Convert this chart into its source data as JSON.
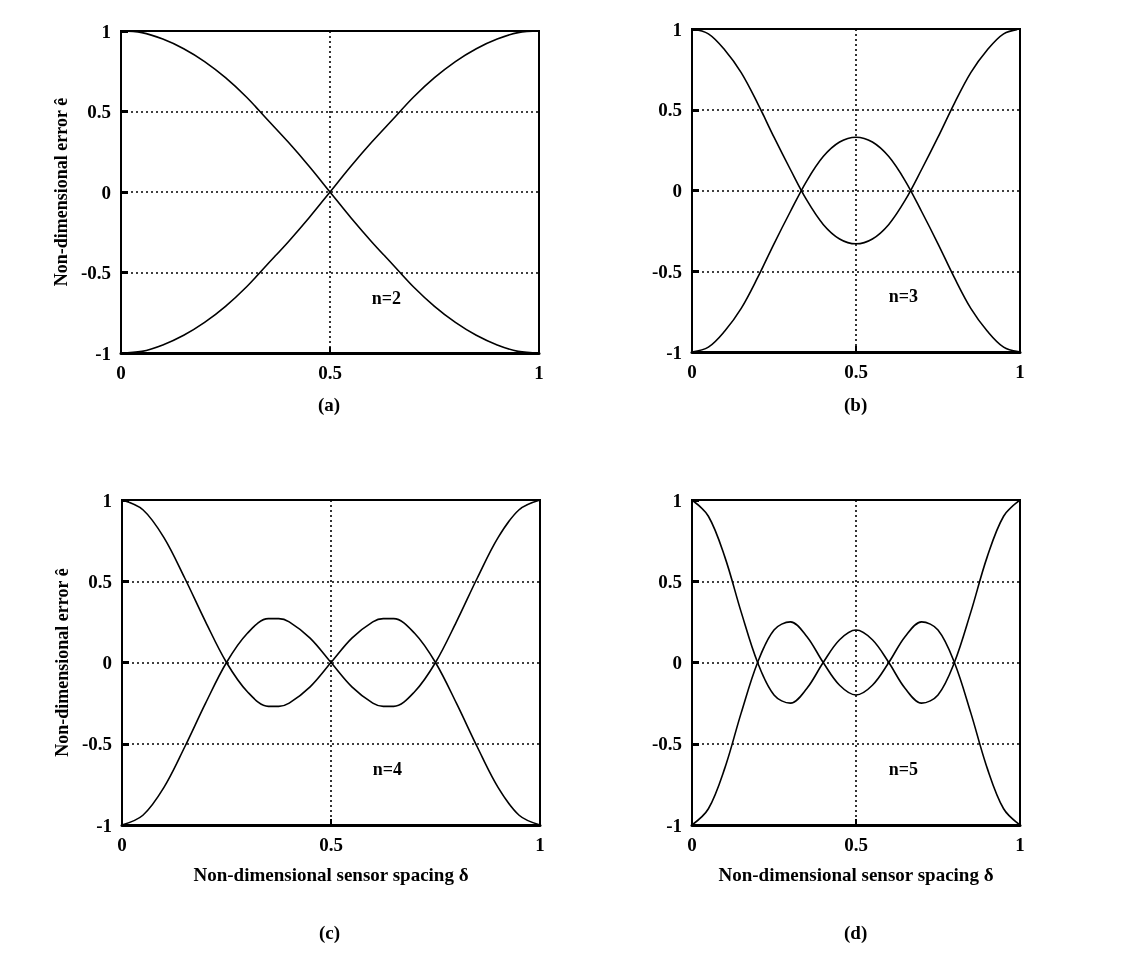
{
  "chart_data": [
    {
      "type": "line",
      "ylabel": "Non-dimensional error ê",
      "annotations": [
        "n=2",
        "(a)"
      ],
      "xlim": [
        0,
        1
      ],
      "xticks": [
        0,
        0.5,
        1
      ],
      "ylim": [
        -1,
        1
      ],
      "yticks": [
        -1,
        -0.5,
        0,
        0.5,
        1
      ],
      "grid": true,
      "marker": "none",
      "line_style": "solid",
      "x": [
        0,
        0.05,
        0.1,
        0.15,
        0.2,
        0.25,
        0.3,
        0.35,
        0.4,
        0.45,
        0.5,
        0.55,
        0.6,
        0.65,
        0.7,
        0.75,
        0.8,
        0.85,
        0.9,
        0.95,
        1
      ],
      "series": [
        {
          "color": "#000000",
          "values": [
            1,
            0.99,
            0.95,
            0.89,
            0.81,
            0.71,
            0.59,
            0.45,
            0.31,
            0.16,
            0,
            -0.16,
            -0.31,
            -0.45,
            -0.59,
            -0.71,
            -0.81,
            -0.89,
            -0.95,
            -0.99,
            -1
          ]
        },
        {
          "color": "#000000",
          "values": [
            -1,
            -0.99,
            -0.95,
            -0.89,
            -0.81,
            -0.71,
            -0.59,
            -0.45,
            -0.31,
            -0.16,
            0,
            0.16,
            0.31,
            0.45,
            0.59,
            0.71,
            0.81,
            0.89,
            0.95,
            0.99,
            1
          ]
        }
      ]
    },
    {
      "type": "line",
      "annotations": [
        "n=3",
        "(b)"
      ],
      "xlim": [
        0,
        1
      ],
      "xticks": [
        0,
        0.5,
        1
      ],
      "ylim": [
        -1,
        1
      ],
      "yticks": [
        -1,
        -0.5,
        0,
        0.5,
        1
      ],
      "grid": true,
      "marker": "none",
      "line_style": "solid",
      "x": [
        0,
        0.05,
        0.1,
        0.15,
        0.2,
        0.25,
        0.3,
        0.35,
        0.4,
        0.45,
        0.5,
        0.55,
        0.6,
        0.65,
        0.7,
        0.75,
        0.8,
        0.85,
        0.9,
        0.95,
        1
      ],
      "series": [
        {
          "color": "#000000",
          "values": [
            1,
            0.97,
            0.87,
            0.73,
            0.54,
            0.33,
            0.13,
            -0.06,
            -0.21,
            -0.3,
            -0.33,
            -0.3,
            -0.21,
            -0.06,
            0.13,
            0.33,
            0.54,
            0.73,
            0.87,
            0.97,
            1
          ]
        },
        {
          "color": "#000000",
          "values": [
            -1,
            -0.97,
            -0.87,
            -0.73,
            -0.54,
            -0.33,
            -0.13,
            0.06,
            0.21,
            0.3,
            0.33,
            0.3,
            0.21,
            0.06,
            -0.13,
            -0.33,
            -0.54,
            -0.73,
            -0.87,
            -0.97,
            -1
          ]
        }
      ]
    },
    {
      "type": "line",
      "ylabel": "Non-dimensional error ê",
      "xlabel": "Non-dimensional sensor spacing δ",
      "annotations": [
        "n=4",
        "(c)"
      ],
      "xlim": [
        0,
        1
      ],
      "xticks": [
        0,
        0.5,
        1
      ],
      "ylim": [
        -1,
        1
      ],
      "yticks": [
        -1,
        -0.5,
        0,
        0.5,
        1
      ],
      "grid": true,
      "marker": "none",
      "line_style": "solid",
      "x": [
        0,
        0.05,
        0.1,
        0.15,
        0.2,
        0.25,
        0.3,
        0.35,
        0.375,
        0.4,
        0.45,
        0.5,
        0.55,
        0.6,
        0.625,
        0.65,
        0.7,
        0.75,
        0.8,
        0.85,
        0.9,
        0.95,
        1
      ],
      "series": [
        {
          "color": "#000000",
          "values": [
            1,
            0.94,
            0.77,
            0.52,
            0.25,
            0,
            -0.18,
            -0.27,
            -0.27,
            -0.25,
            -0.15,
            0,
            0.15,
            0.25,
            0.27,
            0.27,
            0.18,
            0,
            -0.25,
            -0.52,
            -0.77,
            -0.94,
            -1
          ]
        },
        {
          "color": "#000000",
          "values": [
            -1,
            -0.94,
            -0.77,
            -0.52,
            -0.25,
            0,
            0.18,
            0.27,
            0.27,
            0.25,
            0.15,
            0,
            -0.15,
            -0.25,
            -0.27,
            -0.27,
            -0.18,
            0,
            0.25,
            0.52,
            0.77,
            0.94,
            1
          ]
        }
      ]
    },
    {
      "type": "line",
      "xlabel": "Non-dimensional sensor spacing δ",
      "annotations": [
        "n=5",
        "(d)"
      ],
      "xlim": [
        0,
        1
      ],
      "xticks": [
        0,
        0.5,
        1
      ],
      "ylim": [
        -1,
        1
      ],
      "yticks": [
        -1,
        -0.5,
        0,
        0.5,
        1
      ],
      "grid": true,
      "marker": "none",
      "line_style": "solid",
      "x": [
        0,
        0.05,
        0.1,
        0.15,
        0.2,
        0.25,
        0.3,
        0.35,
        0.4,
        0.45,
        0.5,
        0.55,
        0.6,
        0.65,
        0.7,
        0.75,
        0.8,
        0.85,
        0.9,
        0.95,
        1
      ],
      "series": [
        {
          "color": "#000000",
          "values": [
            1,
            0.9,
            0.65,
            0.31,
            0,
            -0.2,
            -0.25,
            -0.16,
            0,
            0.14,
            0.2,
            0.14,
            0,
            -0.16,
            -0.25,
            -0.2,
            0,
            0.31,
            0.65,
            0.9,
            1
          ]
        },
        {
          "color": "#000000",
          "values": [
            -1,
            -0.9,
            -0.65,
            -0.31,
            0,
            0.2,
            0.25,
            0.16,
            0,
            -0.14,
            -0.2,
            -0.14,
            0,
            0.16,
            0.25,
            0.2,
            0,
            -0.31,
            -0.65,
            -0.9,
            -1
          ]
        }
      ]
    }
  ]
}
